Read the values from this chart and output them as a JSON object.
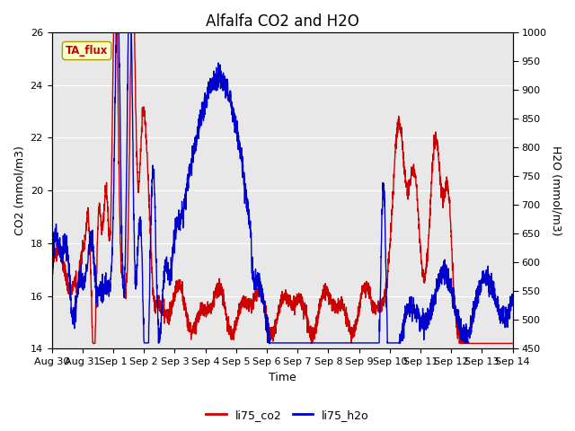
{
  "title": "Alfalfa CO2 and H2O",
  "xlabel": "Time",
  "ylabel_left": "CO2 (mmol/m3)",
  "ylabel_right": "H2O (mmol/m3)",
  "ylim_left": [
    14,
    26
  ],
  "ylim_right": [
    450,
    1000
  ],
  "yticks_left": [
    14,
    16,
    18,
    20,
    22,
    24,
    26
  ],
  "yticks_right": [
    450,
    500,
    550,
    600,
    650,
    700,
    750,
    800,
    850,
    900,
    950,
    1000
  ],
  "color_co2": "#cc0000",
  "color_h2o": "#0000cc",
  "legend_label_co2": "li75_co2",
  "legend_label_h2o": "li75_h2o",
  "annotation_text": "TA_flux",
  "annotation_color": "#cc0000",
  "annotation_bg": "#ffffcc",
  "fig_bg": "#ffffff",
  "plot_bg": "#e8e8e8",
  "linewidth": 1.0,
  "xtick_labels": [
    "Aug 30",
    "Aug 31",
    "Sep 1",
    "Sep 2",
    "Sep 3",
    "Sep 4",
    "Sep 5",
    "Sep 6",
    "Sep 7",
    "Sep 8",
    "Sep 9",
    "Sep 10",
    "Sep 11",
    "Sep 12",
    "Sep 13",
    "Sep 14"
  ],
  "title_fontsize": 12,
  "axis_label_fontsize": 9,
  "tick_fontsize": 8
}
